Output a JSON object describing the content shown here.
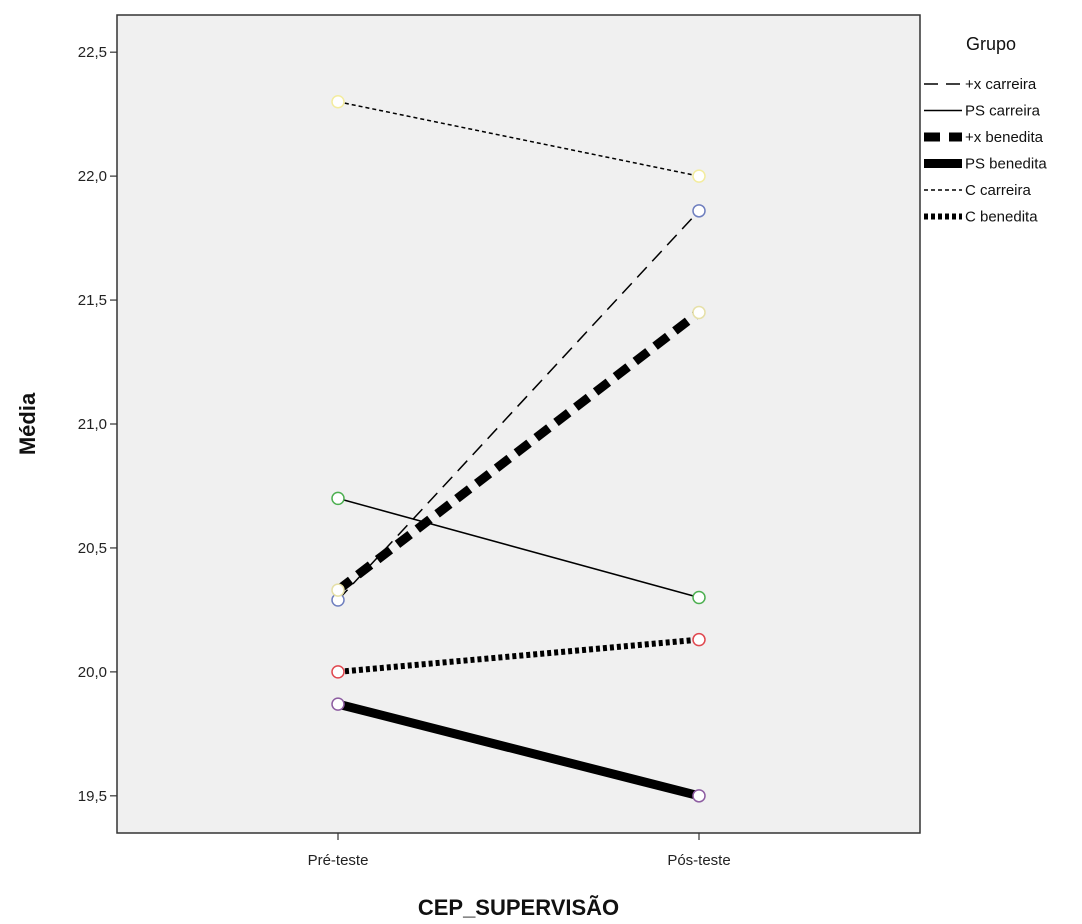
{
  "chart_data": {
    "type": "line",
    "xlabel": "CEP_SUPERVISÃO",
    "ylabel": "Média",
    "categories": [
      "Pré-teste",
      "Pós-teste"
    ],
    "ylim": [
      19.35,
      22.65
    ],
    "yticks": [
      "22,5",
      "22,0",
      "21,5",
      "21,0",
      "20,5",
      "20,0",
      "19,5"
    ],
    "ytick_values": [
      22.5,
      22.0,
      21.5,
      21.0,
      20.5,
      20.0,
      19.5
    ],
    "grid": false,
    "background": "#f0f0f0",
    "legend": {
      "title": "Grupo",
      "placement": "right"
    },
    "series": [
      {
        "name": "+x carreira",
        "values": [
          20.29,
          21.86
        ],
        "style": "long-dash-thin",
        "marker_color": "#6f7fbf"
      },
      {
        "name": "PS carreira",
        "values": [
          20.7,
          20.3
        ],
        "style": "solid-thin",
        "marker_color": "#4caf50"
      },
      {
        "name": "+x benedita",
        "values": [
          20.33,
          21.45
        ],
        "style": "dash-thick",
        "marker_color": "#e6e0a8"
      },
      {
        "name": "PS benedita",
        "values": [
          19.87,
          19.5
        ],
        "style": "solid-thick",
        "marker_color": "#8e5ea2"
      },
      {
        "name": "C carreira",
        "values": [
          22.3,
          22.0
        ],
        "style": "dot-thin",
        "marker_color": "#f3ec9e"
      },
      {
        "name": "C benedita",
        "values": [
          20.0,
          20.13
        ],
        "style": "dot-thick",
        "marker_color": "#e0484f"
      }
    ]
  }
}
